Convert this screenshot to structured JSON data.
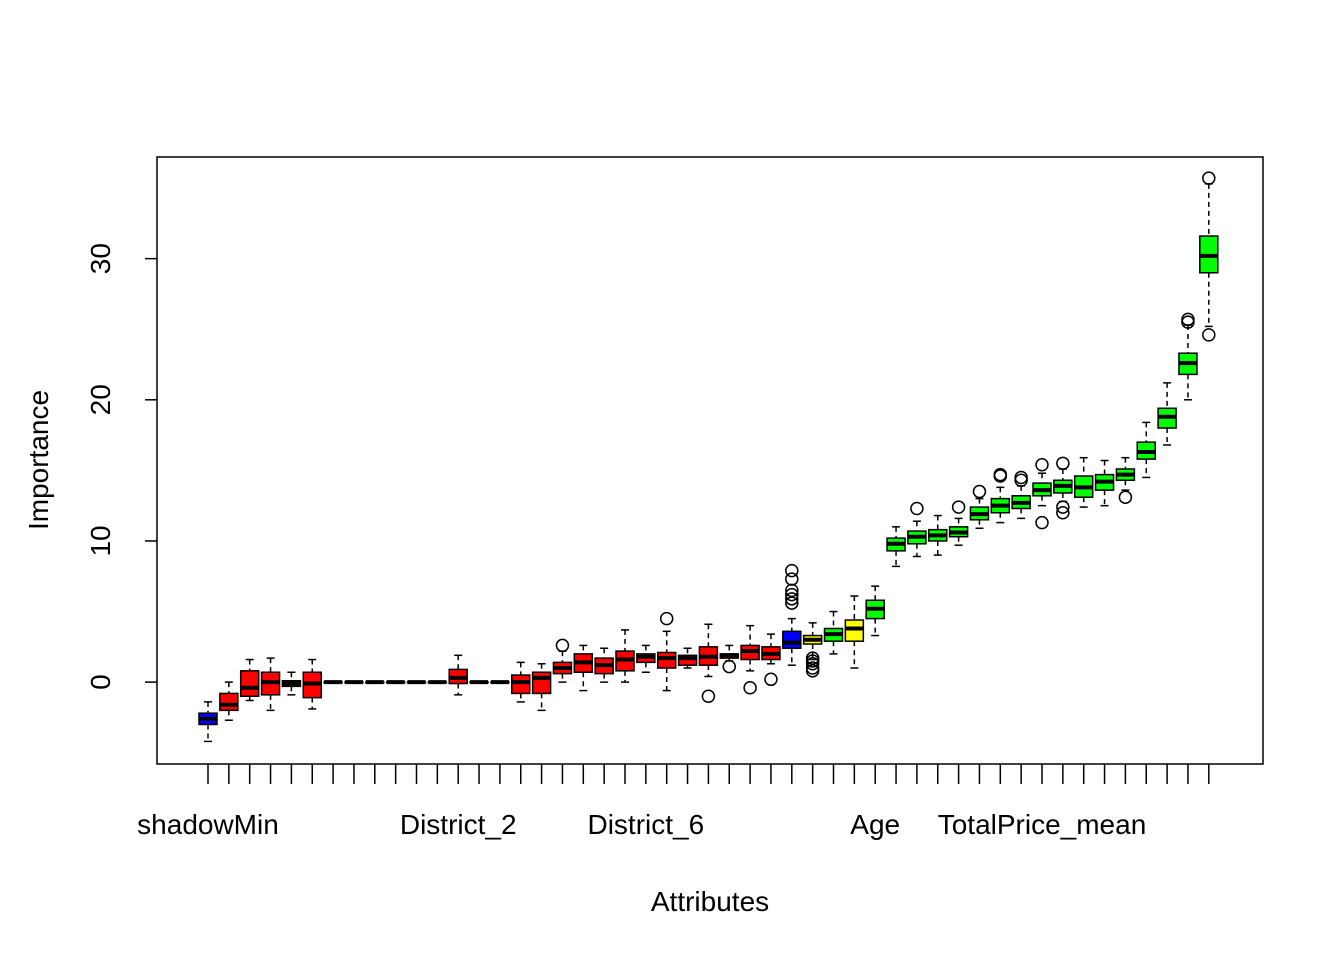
{
  "chart_data": {
    "type": "boxplot",
    "title": "",
    "xlabel": "Attributes",
    "ylabel": "Importance",
    "ylim": [
      -5.8,
      37.2
    ],
    "y_ticks": [
      0,
      10,
      20,
      30
    ],
    "x_tick_labels": [
      {
        "index": 1,
        "label": "shadowMin"
      },
      {
        "index": 13,
        "label": "District_2"
      },
      {
        "index": 22,
        "label": "District_6"
      },
      {
        "index": 33,
        "label": "Age"
      },
      {
        "index": 41,
        "label": "TotalPrice_mean"
      }
    ],
    "colors": {
      "blue": "#0000ff",
      "red": "#ff0000",
      "yellow": "#ffff00",
      "green": "#00ff00",
      "outline": "#000000"
    },
    "boxes": [
      {
        "color": "blue",
        "min": -4.2,
        "q1": -3.0,
        "median": -2.6,
        "q3": -2.2,
        "max": -1.4,
        "outliers": []
      },
      {
        "color": "red",
        "min": -2.7,
        "q1": -2.0,
        "median": -1.6,
        "q3": -0.8,
        "max": 0.0,
        "outliers": []
      },
      {
        "color": "red",
        "min": -1.3,
        "q1": -1.0,
        "median": -0.4,
        "q3": 0.8,
        "max": 1.6,
        "outliers": []
      },
      {
        "color": "red",
        "min": -2.0,
        "q1": -0.9,
        "median": 0.0,
        "q3": 0.7,
        "max": 1.7,
        "outliers": []
      },
      {
        "color": "red",
        "min": -0.9,
        "q1": -0.3,
        "median": -0.1,
        "q3": 0.1,
        "max": 0.7,
        "outliers": []
      },
      {
        "color": "red",
        "min": -1.9,
        "q1": -1.1,
        "median": -0.1,
        "q3": 0.7,
        "max": 1.6,
        "outliers": []
      },
      {
        "color": "red",
        "min": 0,
        "q1": 0,
        "median": 0,
        "q3": 0,
        "max": 0,
        "outliers": []
      },
      {
        "color": "red",
        "min": 0,
        "q1": 0,
        "median": 0,
        "q3": 0,
        "max": 0,
        "outliers": []
      },
      {
        "color": "red",
        "min": 0,
        "q1": 0,
        "median": 0,
        "q3": 0,
        "max": 0,
        "outliers": []
      },
      {
        "color": "red",
        "min": 0,
        "q1": 0,
        "median": 0,
        "q3": 0,
        "max": 0,
        "outliers": []
      },
      {
        "color": "red",
        "min": 0,
        "q1": 0,
        "median": 0,
        "q3": 0,
        "max": 0,
        "outliers": []
      },
      {
        "color": "red",
        "min": 0,
        "q1": 0,
        "median": 0,
        "q3": 0,
        "max": 0,
        "outliers": []
      },
      {
        "color": "red",
        "min": -0.9,
        "q1": -0.1,
        "median": 0.3,
        "q3": 0.9,
        "max": 1.9,
        "outliers": []
      },
      {
        "color": "red",
        "min": 0,
        "q1": 0,
        "median": 0,
        "q3": 0,
        "max": 0,
        "outliers": []
      },
      {
        "color": "red",
        "min": 0,
        "q1": 0,
        "median": 0,
        "q3": 0,
        "max": 0,
        "outliers": []
      },
      {
        "color": "red",
        "min": -1.4,
        "q1": -0.8,
        "median": 0.0,
        "q3": 0.5,
        "max": 1.4,
        "outliers": []
      },
      {
        "color": "red",
        "min": -2.0,
        "q1": -0.8,
        "median": 0.3,
        "q3": 0.7,
        "max": 1.3,
        "outliers": []
      },
      {
        "color": "red",
        "min": 0.0,
        "q1": 0.6,
        "median": 1.0,
        "q3": 1.4,
        "max": 2.2,
        "outliers": [
          2.6
        ]
      },
      {
        "color": "red",
        "min": -0.6,
        "q1": 0.7,
        "median": 1.4,
        "q3": 2.0,
        "max": 2.6,
        "outliers": []
      },
      {
        "color": "red",
        "min": 0.0,
        "q1": 0.6,
        "median": 1.2,
        "q3": 1.7,
        "max": 2.4,
        "outliers": []
      },
      {
        "color": "red",
        "min": 0.0,
        "q1": 0.8,
        "median": 1.6,
        "q3": 2.2,
        "max": 3.7,
        "outliers": []
      },
      {
        "color": "red",
        "min": 0.7,
        "q1": 1.4,
        "median": 1.8,
        "q3": 2.0,
        "max": 2.6,
        "outliers": []
      },
      {
        "color": "red",
        "min": -0.6,
        "q1": 1.0,
        "median": 1.7,
        "q3": 2.1,
        "max": 3.6,
        "outliers": [
          4.5
        ]
      },
      {
        "color": "red",
        "min": 1.0,
        "q1": 1.2,
        "median": 1.7,
        "q3": 1.9,
        "max": 2.4,
        "outliers": []
      },
      {
        "color": "red",
        "min": 0.4,
        "q1": 1.2,
        "median": 1.8,
        "q3": 2.5,
        "max": 4.1,
        "outliers": [
          -1.0
        ]
      },
      {
        "color": "red",
        "min": 1.5,
        "q1": 1.7,
        "median": 1.9,
        "q3": 2.0,
        "max": 2.6,
        "outliers": [
          1.1
        ]
      },
      {
        "color": "red",
        "min": 0.8,
        "q1": 1.6,
        "median": 2.2,
        "q3": 2.6,
        "max": 4.0,
        "outliers": [
          -0.4
        ]
      },
      {
        "color": "red",
        "min": 1.3,
        "q1": 1.6,
        "median": 2.0,
        "q3": 2.5,
        "max": 3.4,
        "outliers": [
          0.2
        ]
      },
      {
        "color": "blue",
        "min": 1.2,
        "q1": 2.4,
        "median": 2.8,
        "q3": 3.6,
        "max": 4.5,
        "outliers": [
          5.6,
          5.9,
          6.2,
          6.5,
          7.3,
          7.9
        ]
      },
      {
        "color": "yellow",
        "min": 1.6,
        "q1": 2.7,
        "median": 3.0,
        "q3": 3.3,
        "max": 4.2,
        "outliers": [
          0.8,
          1.0,
          1.3,
          1.5,
          1.7
        ]
      },
      {
        "color": "green",
        "min": 2.0,
        "q1": 2.9,
        "median": 3.4,
        "q3": 3.8,
        "max": 5.0,
        "outliers": []
      },
      {
        "color": "yellow",
        "min": 1.0,
        "q1": 2.9,
        "median": 3.8,
        "q3": 4.4,
        "max": 6.1,
        "outliers": []
      },
      {
        "color": "green",
        "min": 3.3,
        "q1": 4.5,
        "median": 5.2,
        "q3": 5.8,
        "max": 6.8,
        "outliers": []
      },
      {
        "color": "green",
        "min": 8.2,
        "q1": 9.3,
        "median": 9.8,
        "q3": 10.2,
        "max": 11.0,
        "outliers": []
      },
      {
        "color": "green",
        "min": 8.9,
        "q1": 9.8,
        "median": 10.3,
        "q3": 10.7,
        "max": 11.4,
        "outliers": [
          12.3
        ]
      },
      {
        "color": "green",
        "min": 9.0,
        "q1": 10.0,
        "median": 10.4,
        "q3": 10.8,
        "max": 11.8,
        "outliers": []
      },
      {
        "color": "green",
        "min": 9.7,
        "q1": 10.3,
        "median": 10.6,
        "q3": 11.0,
        "max": 11.6,
        "outliers": [
          12.4
        ]
      },
      {
        "color": "green",
        "min": 10.9,
        "q1": 11.5,
        "median": 11.9,
        "q3": 12.4,
        "max": 13.0,
        "outliers": [
          13.5
        ]
      },
      {
        "color": "green",
        "min": 11.3,
        "q1": 12.0,
        "median": 12.5,
        "q3": 13.0,
        "max": 13.8,
        "outliers": [
          14.6,
          14.7
        ]
      },
      {
        "color": "green",
        "min": 11.6,
        "q1": 12.3,
        "median": 12.7,
        "q3": 13.2,
        "max": 13.9,
        "outliers": [
          14.3,
          14.5
        ]
      },
      {
        "color": "green",
        "min": 12.5,
        "q1": 13.2,
        "median": 13.6,
        "q3": 14.1,
        "max": 14.8,
        "outliers": [
          11.3,
          15.4
        ]
      },
      {
        "color": "green",
        "min": 12.8,
        "q1": 13.4,
        "median": 13.9,
        "q3": 14.3,
        "max": 15.1,
        "outliers": [
          12.0,
          12.4,
          15.5
        ]
      },
      {
        "color": "green",
        "min": 12.4,
        "q1": 13.1,
        "median": 13.8,
        "q3": 14.6,
        "max": 15.9,
        "outliers": []
      },
      {
        "color": "green",
        "min": 12.5,
        "q1": 13.6,
        "median": 14.2,
        "q3": 14.7,
        "max": 15.7,
        "outliers": []
      },
      {
        "color": "green",
        "min": 13.6,
        "q1": 14.3,
        "median": 14.7,
        "q3": 15.1,
        "max": 15.9,
        "outliers": [
          13.1
        ]
      },
      {
        "color": "green",
        "min": 14.5,
        "q1": 15.8,
        "median": 16.3,
        "q3": 17.0,
        "max": 18.4,
        "outliers": []
      },
      {
        "color": "green",
        "min": 16.8,
        "q1": 18.0,
        "median": 18.8,
        "q3": 19.4,
        "max": 21.2,
        "outliers": []
      },
      {
        "color": "green",
        "min": 20.0,
        "q1": 21.8,
        "median": 22.6,
        "q3": 23.3,
        "max": 25.3,
        "outliers": [
          25.5,
          25.7
        ]
      },
      {
        "color": "green",
        "min": 25.2,
        "q1": 29.0,
        "median": 30.2,
        "q3": 31.6,
        "max": 35.3,
        "outliers": [
          24.6,
          35.7
        ]
      }
    ]
  }
}
